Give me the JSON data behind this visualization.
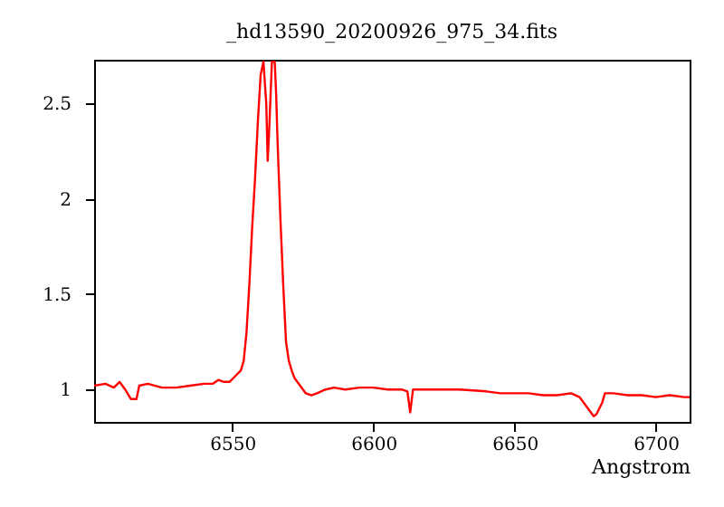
{
  "chart_data": {
    "type": "line",
    "title": "_hd13590_20200926_975_34.fits",
    "xlabel": "Angstrom",
    "x": [
      6501,
      6505,
      6508,
      6510,
      6512,
      6514,
      6516,
      6517,
      6520,
      6525,
      6530,
      6535,
      6540,
      6543,
      6545,
      6547,
      6549,
      6551,
      6553,
      6554,
      6555,
      6556,
      6557,
      6558,
      6559,
      6560,
      6561,
      6562,
      6562.5,
      6563,
      6564,
      6565,
      6565.5,
      6566,
      6567,
      6568,
      6569,
      6570,
      6571,
      6572,
      6574,
      6576,
      6578,
      6580,
      6583,
      6586,
      6590,
      6595,
      6600,
      6605,
      6610,
      6612,
      6613,
      6614,
      6620,
      6625,
      6630,
      6640,
      6645,
      6650,
      6655,
      6660,
      6665,
      6670,
      6673,
      6675,
      6677,
      6678,
      6679,
      6681,
      6682,
      6685,
      6690,
      6695,
      6700,
      6705,
      6710,
      6712
    ],
    "series": [
      {
        "color": "#ff0000",
        "values": [
          1.02,
          1.03,
          1.01,
          1.04,
          1.0,
          0.95,
          0.95,
          1.02,
          1.03,
          1.01,
          1.01,
          1.02,
          1.03,
          1.03,
          1.05,
          1.04,
          1.04,
          1.07,
          1.1,
          1.15,
          1.3,
          1.55,
          1.85,
          2.1,
          2.4,
          2.65,
          2.72,
          2.5,
          2.2,
          2.35,
          2.72,
          2.72,
          2.55,
          2.3,
          1.9,
          1.55,
          1.25,
          1.15,
          1.1,
          1.06,
          1.02,
          0.98,
          0.97,
          0.98,
          1.0,
          1.01,
          1.0,
          1.01,
          1.01,
          1.0,
          1.0,
          0.99,
          0.88,
          1.0,
          1.0,
          1.0,
          1.0,
          0.99,
          0.98,
          0.98,
          0.98,
          0.97,
          0.97,
          0.98,
          0.96,
          0.92,
          0.88,
          0.86,
          0.87,
          0.93,
          0.98,
          0.98,
          0.97,
          0.97,
          0.96,
          0.97,
          0.96,
          0.96
        ]
      }
    ],
    "xlim": [
      6501,
      6712
    ],
    "ylim": [
      0.83,
      2.73
    ],
    "xticks": [
      6550,
      6600,
      6650,
      6700
    ],
    "yticks": [
      1,
      1.5,
      2,
      2.5
    ],
    "grid": false
  }
}
